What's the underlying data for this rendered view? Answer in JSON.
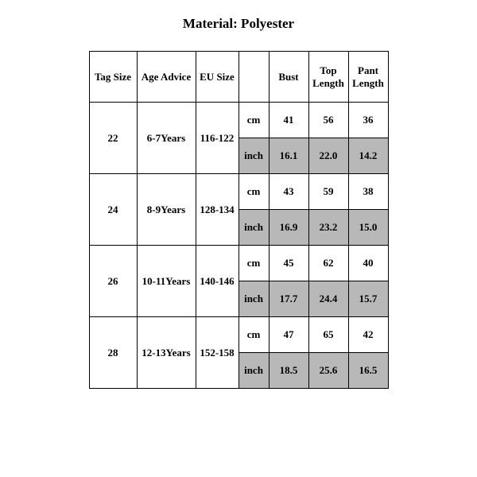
{
  "title": "Material: Polyester",
  "table": {
    "columns": [
      "Tag Size",
      "Age Advice",
      "EU Size",
      "",
      "Bust",
      "Top Length",
      "Pant Length"
    ],
    "unit_labels": {
      "cm": "cm",
      "inch": "inch"
    },
    "shaded_bg": "#b8b8b8",
    "border_color": "#000000",
    "font_family": "Times New Roman",
    "header_fontsize": 13,
    "body_fontsize": 13,
    "rows": [
      {
        "tag": "22",
        "age": "6-7Years",
        "eu": "116-122",
        "cm": {
          "bust": "41",
          "top": "56",
          "pant": "36"
        },
        "inch": {
          "bust": "16.1",
          "top": "22.0",
          "pant": "14.2"
        }
      },
      {
        "tag": "24",
        "age": "8-9Years",
        "eu": "128-134",
        "cm": {
          "bust": "43",
          "top": "59",
          "pant": "38"
        },
        "inch": {
          "bust": "16.9",
          "top": "23.2",
          "pant": "15.0"
        }
      },
      {
        "tag": "26",
        "age": "10-11Years",
        "eu": "140-146",
        "cm": {
          "bust": "45",
          "top": "62",
          "pant": "40"
        },
        "inch": {
          "bust": "17.7",
          "top": "24.4",
          "pant": "15.7"
        }
      },
      {
        "tag": "28",
        "age": "12-13Years",
        "eu": "152-158",
        "cm": {
          "bust": "47",
          "top": "65",
          "pant": "42"
        },
        "inch": {
          "bust": "18.5",
          "top": "25.6",
          "pant": "16.5"
        }
      }
    ]
  }
}
